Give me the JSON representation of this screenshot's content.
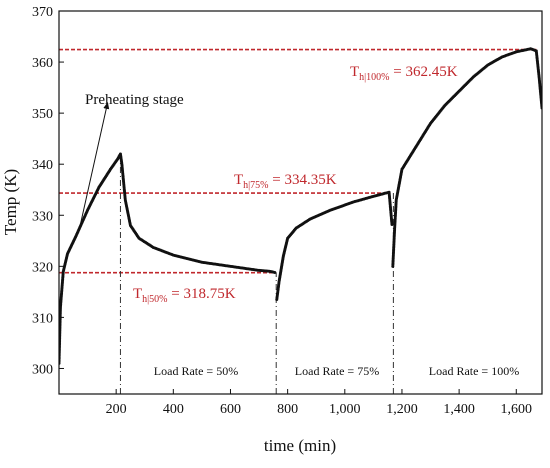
{
  "chart_data": {
    "type": "scatter",
    "xlabel": "time (min)",
    "ylabel": "Temp (K)",
    "xlim": [
      0,
      1690
    ],
    "ylim": [
      295,
      370
    ],
    "x_ticks": [
      200,
      400,
      600,
      800,
      1000,
      1200,
      1400,
      1600
    ],
    "x_tick_labels": [
      "200",
      "400",
      "600",
      "800",
      "1,000",
      "1,200",
      "1,400",
      "1,600"
    ],
    "y_ticks": [
      300,
      310,
      320,
      330,
      340,
      350,
      360,
      370
    ],
    "y_tick_labels": [
      "300",
      "310",
      "320",
      "330",
      "340",
      "350",
      "360",
      "370"
    ],
    "series": [
      {
        "color": "#111111",
        "segments": [
          [
            [
              0,
              301
            ],
            [
              5,
              312
            ],
            [
              15,
              319
            ],
            [
              30,
              322.5
            ],
            [
              60,
              326
            ],
            [
              100,
              331
            ],
            [
              140,
              335.5
            ],
            [
              180,
              339
            ],
            [
              205,
              341
            ],
            [
              215,
              342
            ],
            [
              220,
              340
            ],
            [
              232,
              333
            ],
            [
              250,
              328
            ],
            [
              280,
              325.5
            ],
            [
              330,
              323.7
            ],
            [
              400,
              322.2
            ],
            [
              500,
              320.8
            ],
            [
              600,
              320.0
            ],
            [
              700,
              319.2
            ],
            [
              740,
              319.0
            ],
            [
              755,
              318.8
            ]
          ],
          [
            [
              762,
              313.5
            ],
            [
              770,
              317
            ],
            [
              785,
              322
            ],
            [
              800,
              325.5
            ],
            [
              830,
              327.5
            ],
            [
              880,
              329.3
            ],
            [
              950,
              331
            ],
            [
              1030,
              332.6
            ],
            [
              1100,
              333.7
            ],
            [
              1140,
              334.3
            ],
            [
              1155,
              334.5
            ],
            [
              1165,
              328.2
            ]
          ],
          [
            [
              1168,
              320
            ],
            [
              1174,
              327
            ],
            [
              1180,
              333
            ],
            [
              1200,
              339
            ],
            [
              1250,
              343.5
            ],
            [
              1300,
              348
            ],
            [
              1350,
              351.5
            ],
            [
              1400,
              354.3
            ],
            [
              1450,
              357.1
            ],
            [
              1500,
              359.4
            ],
            [
              1550,
              361
            ],
            [
              1600,
              362
            ],
            [
              1650,
              362.6
            ],
            [
              1670,
              362.2
            ],
            [
              1680,
              357
            ],
            [
              1690,
              351
            ]
          ]
        ]
      }
    ],
    "reference_lines": [
      {
        "y": 362.45,
        "x_range": [
          0,
          1670
        ],
        "color": "#c0282d",
        "label_main": "T",
        "label_sub": "h|100%",
        "label_value": " = 362.45K"
      },
      {
        "y": 334.35,
        "x_range": [
          0,
          1160
        ],
        "color": "#c0282d",
        "label_main": "T",
        "label_sub": "h|75%",
        "label_value": " = 334.35K"
      },
      {
        "y": 318.75,
        "x_range": [
          0,
          760
        ],
        "color": "#c0282d",
        "label_main": "T",
        "label_sub": "h|50%",
        "label_value": " = 318.75K"
      }
    ],
    "dividers": [
      {
        "x": 215
      },
      {
        "x": 760
      },
      {
        "x": 1170
      }
    ],
    "region_labels": [
      "Load Rate = 50%",
      "Load Rate = 75%",
      "Load Rate = 100%"
    ],
    "annotation": {
      "text": "Preheating stage",
      "arrow_from": [
        70,
        327
      ],
      "arrow_to": [
        170,
        352
      ]
    },
    "legend_colors": {
      "ref_line": "#c0282d",
      "divider": "#333333"
    }
  }
}
